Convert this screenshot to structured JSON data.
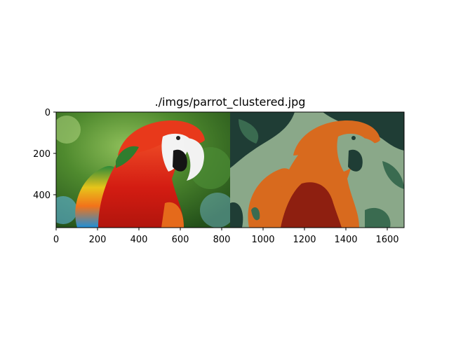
{
  "figure": {
    "title": "./imgs/parrot_clustered.jpg",
    "xaxis": {
      "ticks": [
        "0",
        "200",
        "400",
        "600",
        "800",
        "1000",
        "1200",
        "1400",
        "1600"
      ]
    },
    "yaxis": {
      "ticks": [
        "0",
        "200",
        "400"
      ]
    }
  },
  "images": [
    {
      "name": "original-parrot-photo",
      "palette": [
        "#2f6a1f",
        "#6a9d3c",
        "#d62515",
        "#f06a10",
        "#1e90d6",
        "#f6f6f6",
        "#111111"
      ]
    },
    {
      "name": "clustered-parrot-image",
      "palette": [
        "#1f3d35",
        "#3a6b50",
        "#8aa889",
        "#d86a1e",
        "#8e1f10",
        "#f0f0f0"
      ]
    }
  ]
}
